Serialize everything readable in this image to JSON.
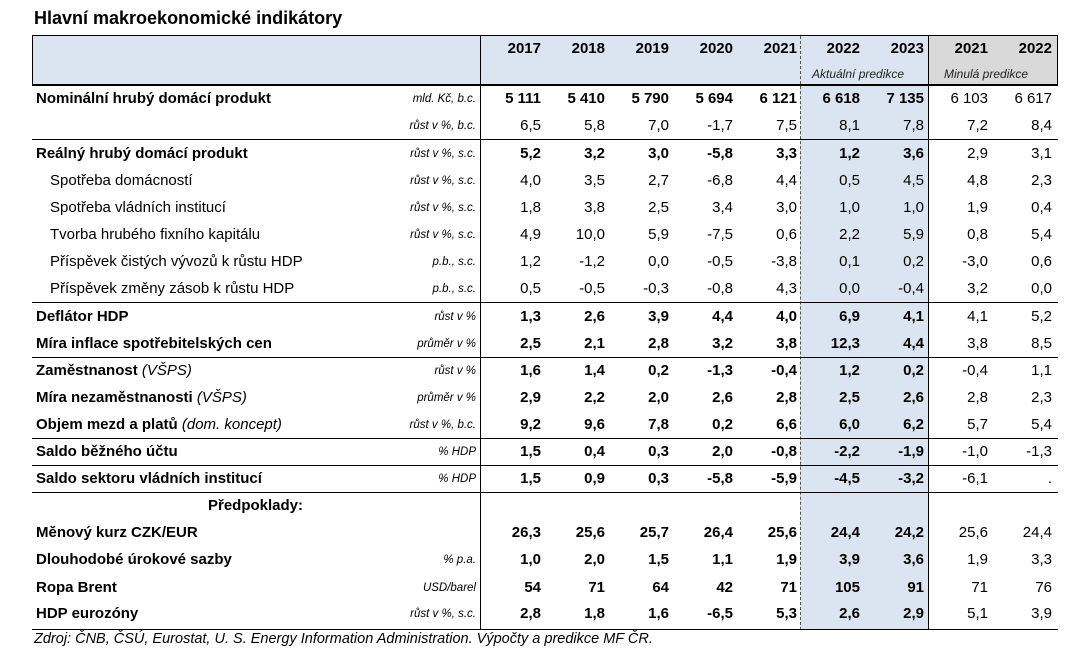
{
  "title": "Hlavní makroekonomické indikátory",
  "chart_data": {
    "type": "table",
    "columns": [
      "2017",
      "2018",
      "2019",
      "2020",
      "2021",
      "2022",
      "2023",
      "2021",
      "2022"
    ],
    "column_groups": {
      "actual_label": "Aktuální predikce",
      "previous_label": "Minulá predikce"
    },
    "rows": [
      {
        "label": "Nominální hrubý domácí produkt",
        "note": "",
        "unit": "mld. Kč, b.c.",
        "bold": true,
        "indent": false,
        "values": [
          "5 111",
          "5 410",
          "5 790",
          "5 694",
          "6 121",
          "6 618",
          "7 135",
          "6 103",
          "6 617"
        ]
      },
      {
        "label": "",
        "note": "",
        "unit": "růst v %, b.c.",
        "bold": false,
        "indent": false,
        "values": [
          "6,5",
          "5,8",
          "7,0",
          "-1,7",
          "7,5",
          "8,1",
          "7,8",
          "7,2",
          "8,4"
        ]
      },
      {
        "label": "Reálný hrubý domácí produkt",
        "note": "",
        "unit": "růst v %, s.c.",
        "bold": true,
        "indent": false,
        "values": [
          "5,2",
          "3,2",
          "3,0",
          "-5,8",
          "3,3",
          "1,2",
          "3,6",
          "2,9",
          "3,1"
        ]
      },
      {
        "label": "Spotřeba domácností",
        "note": "",
        "unit": "růst v %, s.c.",
        "bold": false,
        "indent": true,
        "values": [
          "4,0",
          "3,5",
          "2,7",
          "-6,8",
          "4,4",
          "0,5",
          "4,5",
          "4,8",
          "2,3"
        ]
      },
      {
        "label": "Spotřeba vládních institucí",
        "note": "",
        "unit": "růst v %, s.c.",
        "bold": false,
        "indent": true,
        "values": [
          "1,8",
          "3,8",
          "2,5",
          "3,4",
          "3,0",
          "1,0",
          "1,0",
          "1,9",
          "0,4"
        ]
      },
      {
        "label": "Tvorba hrubého fixního kapitálu",
        "note": "",
        "unit": "růst v %, s.c.",
        "bold": false,
        "indent": true,
        "values": [
          "4,9",
          "10,0",
          "5,9",
          "-7,5",
          "0,6",
          "2,2",
          "5,9",
          "0,8",
          "5,4"
        ]
      },
      {
        "label": "Příspěvek čistých vývozů k růstu HDP",
        "note": "",
        "unit": "p.b., s.c.",
        "bold": false,
        "indent": true,
        "values": [
          "1,2",
          "-1,2",
          "0,0",
          "-0,5",
          "-3,8",
          "0,1",
          "0,2",
          "-3,0",
          "0,6"
        ]
      },
      {
        "label": "Příspěvek změny zásob k růstu HDP",
        "note": "",
        "unit": "p.b., s.c.",
        "bold": false,
        "indent": true,
        "values": [
          "0,5",
          "-0,5",
          "-0,3",
          "-0,8",
          "4,3",
          "0,0",
          "-0,4",
          "3,2",
          "0,0"
        ]
      },
      {
        "label": "Deflátor HDP",
        "note": "",
        "unit": "růst v %",
        "bold": true,
        "indent": false,
        "values": [
          "1,3",
          "2,6",
          "3,9",
          "4,4",
          "4,0",
          "6,9",
          "4,1",
          "4,1",
          "5,2"
        ]
      },
      {
        "label": "Míra inflace spotřebitelských cen",
        "note": "",
        "unit": "průměr v %",
        "bold": true,
        "indent": false,
        "values": [
          "2,5",
          "2,1",
          "2,8",
          "3,2",
          "3,8",
          "12,3",
          "4,4",
          "3,8",
          "8,5"
        ]
      },
      {
        "label": "Zaměstnanost",
        "note": "(VŠPS)",
        "unit": "růst v %",
        "bold": true,
        "indent": false,
        "values": [
          "1,6",
          "1,4",
          "0,2",
          "-1,3",
          "-0,4",
          "1,2",
          "0,2",
          "-0,4",
          "1,1"
        ]
      },
      {
        "label": "Míra nezaměstnanosti",
        "note": "(VŠPS)",
        "unit": "průměr v %",
        "bold": true,
        "indent": false,
        "values": [
          "2,9",
          "2,2",
          "2,0",
          "2,6",
          "2,8",
          "2,5",
          "2,6",
          "2,8",
          "2,3"
        ]
      },
      {
        "label": "Objem mezd a platů",
        "note": "(dom. koncept)",
        "unit": "růst v %, b.c.",
        "bold": true,
        "indent": false,
        "values": [
          "9,2",
          "9,6",
          "7,8",
          "0,2",
          "6,6",
          "6,0",
          "6,2",
          "5,7",
          "5,4"
        ]
      },
      {
        "label": "Saldo běžného účtu",
        "note": "",
        "unit": "% HDP",
        "bold": true,
        "indent": false,
        "values": [
          "1,5",
          "0,4",
          "0,3",
          "2,0",
          "-0,8",
          "-2,2",
          "-1,9",
          "-1,0",
          "-1,3"
        ]
      },
      {
        "label": "Saldo sektoru vládních institucí",
        "note": "",
        "unit": "% HDP",
        "bold": true,
        "indent": false,
        "values": [
          "1,5",
          "0,9",
          "0,3",
          "-5,8",
          "-5,9",
          "-4,5",
          "-3,2",
          "-6,1",
          "."
        ]
      },
      {
        "label": "Předpoklady:",
        "note": "",
        "unit": "",
        "bold": true,
        "indent": false,
        "section": true,
        "values": [
          "",
          "",
          "",
          "",
          "",
          "",
          "",
          "",
          ""
        ]
      },
      {
        "label": "Měnový kurz CZK/EUR",
        "note": "",
        "unit": "",
        "bold": true,
        "indent": false,
        "values": [
          "26,3",
          "25,6",
          "25,7",
          "26,4",
          "25,6",
          "24,4",
          "24,2",
          "25,6",
          "24,4"
        ]
      },
      {
        "label": "Dlouhodobé úrokové sazby",
        "note": "",
        "unit": "% p.a.",
        "bold": true,
        "indent": false,
        "values": [
          "1,0",
          "2,0",
          "1,5",
          "1,1",
          "1,9",
          "3,9",
          "3,6",
          "1,9",
          "3,3"
        ]
      },
      {
        "label": "Ropa Brent",
        "note": "",
        "unit": "USD/barel",
        "bold": true,
        "indent": false,
        "values": [
          "54",
          "71",
          "64",
          "42",
          "71",
          "105",
          "91",
          "71",
          "76"
        ]
      },
      {
        "label": "HDP eurozóny",
        "note": "",
        "unit": "růst v %, s.c.",
        "bold": true,
        "indent": false,
        "values": [
          "2,8",
          "1,8",
          "1,6",
          "-6,5",
          "5,3",
          "2,6",
          "2,9",
          "5,1",
          "3,9"
        ]
      }
    ]
  },
  "footer": "Zdroj: ČNB, ČSÚ, Eurostat, U. S. Energy Information Administration. Výpočty a predikce MF ČR."
}
